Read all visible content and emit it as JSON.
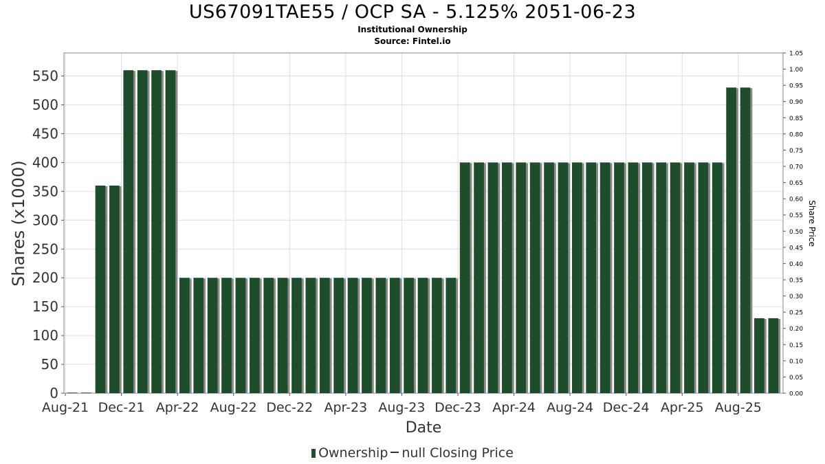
{
  "title": "US67091TAE55 / OCP SA - 5.125% 2051-06-23",
  "subtitle1": "Institutional Ownership",
  "subtitle2": "Source: Fintel.io",
  "legend": {
    "ownership_label": "Ownership",
    "price_label": "null Closing Price"
  },
  "colors": {
    "bar": "#1e4d2b",
    "bar_shadow": "#8a8a8a",
    "grid": "#dddddd"
  },
  "chart_data": {
    "type": "bar",
    "xlabel": "Date",
    "ylabel": "Shares (x1000)",
    "y2label": "Share Price",
    "ylim": [
      0,
      590
    ],
    "y2lim": [
      0,
      1.05
    ],
    "yticks": [
      0,
      50,
      100,
      150,
      200,
      250,
      300,
      350,
      400,
      450,
      500,
      550
    ],
    "y2ticks": [
      "0.00",
      "0.05",
      "0.10",
      "0.15",
      "0.20",
      "0.25",
      "0.30",
      "0.35",
      "0.40",
      "0.45",
      "0.50",
      "0.55",
      "0.60",
      "0.65",
      "0.70",
      "0.75",
      "0.80",
      "0.85",
      "0.90",
      "0.95",
      "1.00",
      "1.05"
    ],
    "xticks": [
      "Aug-21",
      "Dec-21",
      "Apr-22",
      "Aug-22",
      "Dec-22",
      "Apr-23",
      "Aug-23",
      "Dec-23",
      "Apr-24",
      "Aug-24",
      "Dec-24",
      "Apr-25",
      "Aug-25"
    ],
    "grid": true,
    "legend_position": "bottom",
    "series": [
      {
        "name": "Ownership",
        "values": [
          0,
          0,
          360,
          360,
          560,
          560,
          560,
          560,
          200,
          200,
          200,
          200,
          200,
          200,
          200,
          200,
          200,
          200,
          200,
          200,
          200,
          200,
          200,
          200,
          200,
          200,
          200,
          200,
          400,
          400,
          400,
          400,
          400,
          400,
          400,
          400,
          400,
          400,
          400,
          400,
          400,
          400,
          400,
          400,
          400,
          400,
          400,
          530,
          530,
          130,
          130
        ]
      }
    ]
  }
}
